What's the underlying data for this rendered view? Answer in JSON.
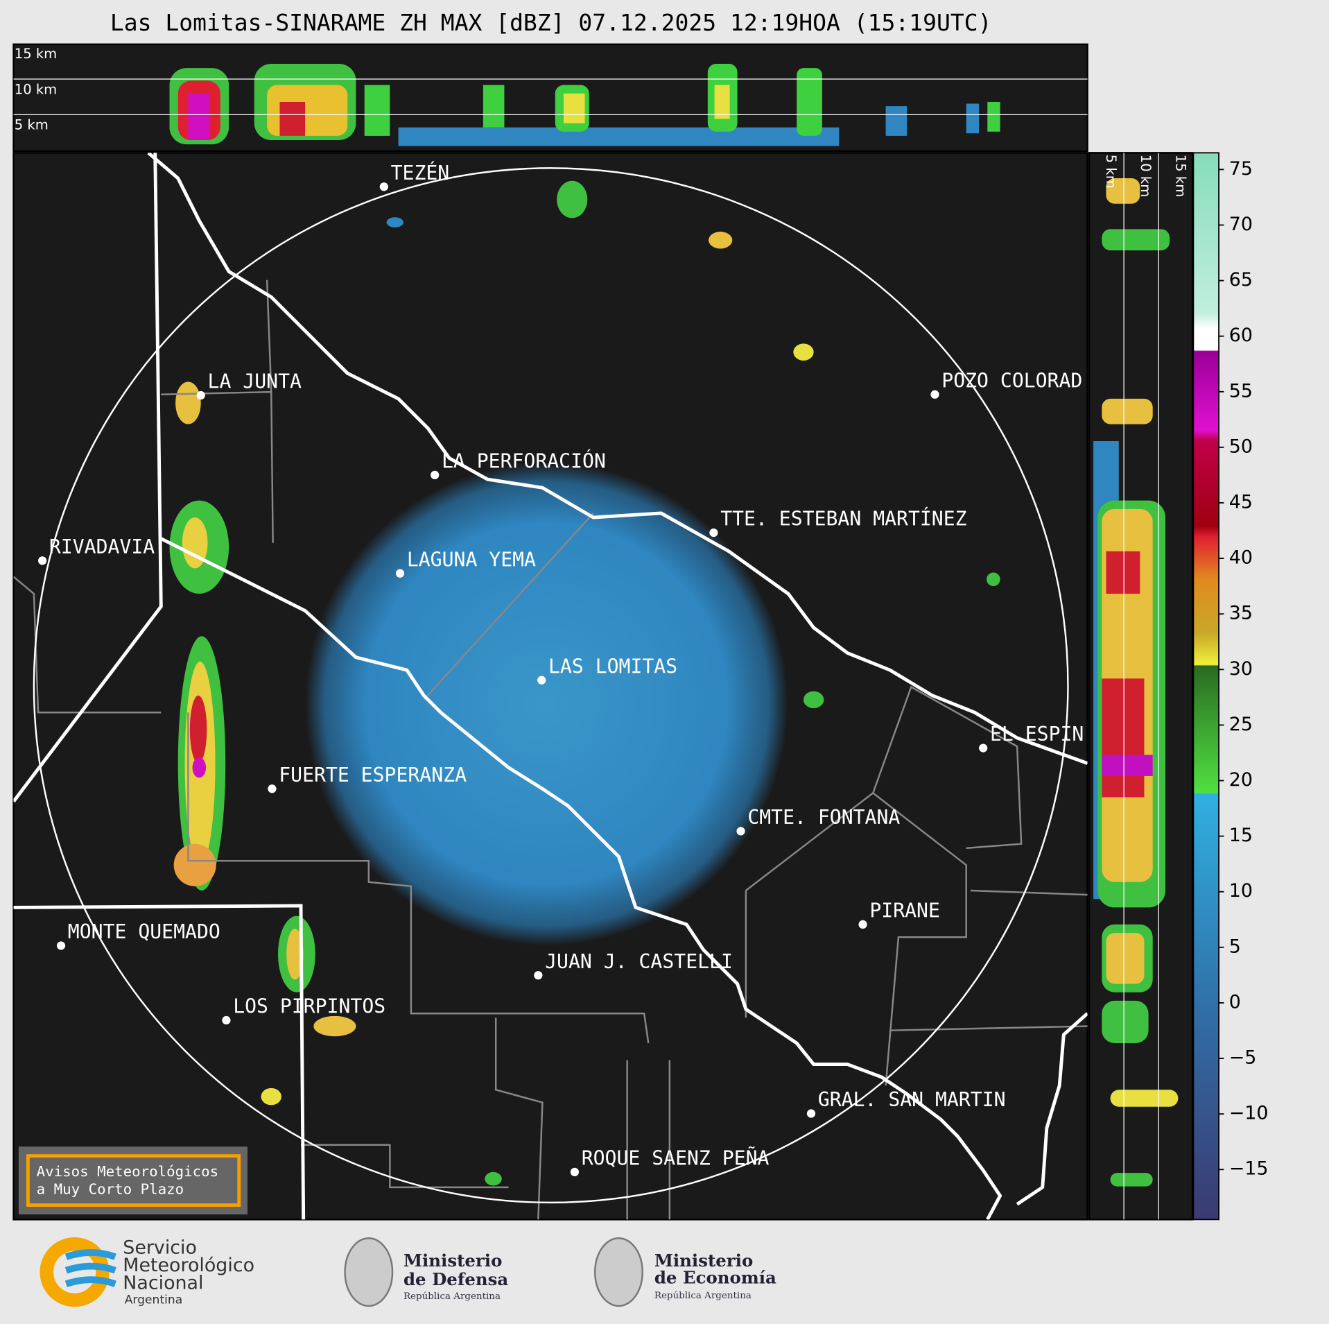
{
  "title": "Las Lomitas-SINARAME ZH MAX [dBZ] 07.12.2025 12:19HOA (15:19UTC)",
  "height_labels": {
    "top": [
      "15 km",
      "10 km",
      "5 km"
    ],
    "side": [
      "5 km",
      "10 km",
      "15 km"
    ]
  },
  "places": [
    "TEZÉN",
    "LA JUNTA",
    "POZO COLORAD",
    "LA PERFORACIÓN",
    "TTE. ESTEBAN MARTÍNEZ",
    "RIVADAVIA",
    "LAGUNA YEMA",
    "LAS LOMITAS",
    "EL ESPIN",
    "FUERTE ESPERANZA",
    "CMTE. FONTANA",
    "PIRANE",
    "MONTE QUEMADO",
    "JUAN J. CASTELLI",
    "LOS PIRPINTOS",
    "GRAL. SAN MARTIN",
    "ROQUE SAENZ PEÑA"
  ],
  "colorbar": {
    "range": [
      -19.5,
      76.5
    ],
    "ticks": [
      {
        "value": -15,
        "label": "−15"
      },
      {
        "value": -10,
        "label": "−10"
      },
      {
        "value": -5,
        "label": "−5"
      },
      0,
      5,
      10,
      15,
      20,
      25,
      30,
      35,
      40,
      45,
      50,
      55,
      60,
      65,
      70,
      75
    ]
  },
  "notice": [
    "Avisos Meteorológicos",
    "a Muy Corto Plazo"
  ],
  "logos": {
    "smn": [
      "Servicio",
      "Meteorológico",
      "Nacional",
      "Argentina"
    ],
    "defensa": [
      "Ministerio",
      "de Defensa",
      "República Argentina"
    ],
    "economia": [
      "Ministerio",
      "de Economía",
      "República Argentina"
    ]
  }
}
